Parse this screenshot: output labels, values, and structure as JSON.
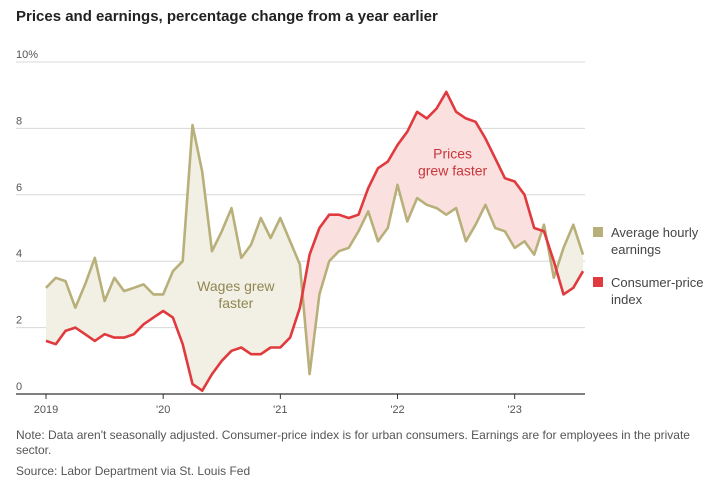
{
  "title": "Prices and earnings, percentage change from a year earlier",
  "note": "Note: Data aren't seasonally adjusted. Consumer-price index is for urban consumers. Earnings are for employees in the private sector.",
  "source": "Source: Labor Department via St. Louis Fed",
  "colors": {
    "earnings": "#b8b07a",
    "cpi": "#e03a3e",
    "earnings_fill": "#f2f0e4",
    "cpi_fill": "#fbe0e0",
    "grid": "#d8d8d8"
  },
  "chart_data": {
    "type": "line",
    "y_ticks": [
      {
        "value": 0,
        "label": "0"
      },
      {
        "value": 2,
        "label": "2"
      },
      {
        "value": 4,
        "label": "4"
      },
      {
        "value": 6,
        "label": "6"
      },
      {
        "value": 8,
        "label": "8"
      },
      {
        "value": 10,
        "label": "10%"
      }
    ],
    "x_ticks": [
      {
        "value": 2019,
        "label": "2019"
      },
      {
        "value": 2020,
        "label": "'20"
      },
      {
        "value": 2021,
        "label": "'21"
      },
      {
        "value": 2022,
        "label": "'22"
      },
      {
        "value": 2023,
        "label": "'23"
      }
    ],
    "xlim": [
      2019,
      2023.6
    ],
    "ylim": [
      0,
      10
    ],
    "start_period": "2019-01",
    "grid": true,
    "legend": [
      {
        "series": "earnings",
        "lines": [
          "Average hourly",
          "earnings"
        ]
      },
      {
        "series": "cpi",
        "lines": [
          "Consumer-price",
          "index"
        ]
      }
    ],
    "annotations": [
      {
        "lines": [
          "Wages grew",
          "faster"
        ],
        "series": "earnings",
        "x": 2020.62,
        "y": 3.1
      },
      {
        "lines": [
          "Prices",
          "grew faster"
        ],
        "series": "cpi",
        "x": 2022.47,
        "y": 7.1
      }
    ],
    "series": [
      {
        "key": "earnings",
        "values": [
          3.2,
          3.5,
          3.4,
          2.6,
          3.3,
          4.1,
          2.8,
          3.5,
          3.1,
          3.2,
          3.3,
          3.0,
          3.0,
          3.7,
          4.0,
          8.1,
          6.7,
          4.3,
          4.9,
          5.6,
          4.1,
          4.5,
          5.3,
          4.7,
          5.3,
          4.6,
          3.9,
          0.6,
          3.0,
          4.0,
          4.3,
          4.4,
          4.9,
          5.5,
          4.6,
          5.0,
          6.3,
          5.2,
          5.9,
          5.7,
          5.6,
          5.4,
          5.6,
          4.6,
          5.1,
          5.7,
          5.0,
          4.9,
          4.4,
          4.6,
          4.2,
          5.1,
          3.5,
          4.4,
          5.1,
          4.2
        ]
      },
      {
        "key": "cpi",
        "values": [
          1.6,
          1.5,
          1.9,
          2.0,
          1.8,
          1.6,
          1.8,
          1.7,
          1.7,
          1.8,
          2.1,
          2.3,
          2.5,
          2.3,
          1.5,
          0.3,
          0.1,
          0.6,
          1.0,
          1.3,
          1.4,
          1.2,
          1.2,
          1.4,
          1.4,
          1.7,
          2.6,
          4.2,
          5.0,
          5.4,
          5.4,
          5.3,
          5.4,
          6.2,
          6.8,
          7.0,
          7.5,
          7.9,
          8.5,
          8.3,
          8.6,
          9.1,
          8.5,
          8.3,
          8.2,
          7.7,
          7.1,
          6.5,
          6.4,
          6.0,
          5.0,
          4.9,
          4.0,
          3.0,
          3.2,
          3.7
        ]
      }
    ]
  }
}
